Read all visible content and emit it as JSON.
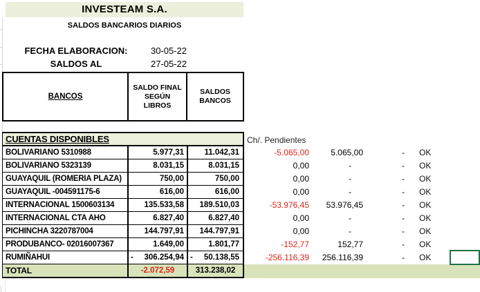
{
  "header": {
    "company": "INVESTEAM S.A.",
    "subtitle": "SALDOS BANCARIOS DIARIOS",
    "fecha_label": "FECHA ELABORACION:",
    "fecha_value": "30-05-22",
    "saldos_label": "SALDOS AL",
    "saldos_value": "27-05-22"
  },
  "table": {
    "col_bancos": "BANCOS",
    "col_libros": "SALDO FINAL\nSEGÚN\nLIBROS",
    "col_saldos": "SALDOS\nBANCOS",
    "section_label": "CUENTAS DISPONIBLES",
    "pendientes_label": "Ch/. Pendientes",
    "rows": [
      {
        "name": "BOLIVARIANO 5310988",
        "libros": "5.977,31",
        "bancos": "11.042,31",
        "dif": "-5.065,00",
        "pend": "5.065,00",
        "ajuste": "-",
        "status": "OK"
      },
      {
        "name": "BOLIVARIANO 5323139",
        "libros": "8.031,15",
        "bancos": "8.031,15",
        "dif": "0,00",
        "pend": "-",
        "ajuste": "-",
        "status": "OK"
      },
      {
        "name": "GUAYAQUIL (ROMERIA PLAZA)",
        "libros": "750,00",
        "bancos": "750,00",
        "dif": "0,00",
        "pend": "-",
        "ajuste": "-",
        "status": "OK"
      },
      {
        "name": "GUAYAQUIL -004591175-6",
        "libros": "616,00",
        "bancos": "616,00",
        "dif": "0,00",
        "pend": "-",
        "ajuste": "-",
        "status": "OK"
      },
      {
        "name": "INTERNACIONAL 1500603134",
        "libros": "135.533,58",
        "bancos": "189.510,03",
        "dif": "-53.976,45",
        "pend": "53.976,45",
        "ajuste": "-",
        "status": "OK"
      },
      {
        "name": "INTERNACIONAL CTA AHO",
        "libros": "6.827,40",
        "bancos": "6.827,40",
        "dif": "0,00",
        "pend": "-",
        "ajuste": "-",
        "status": "OK"
      },
      {
        "name": "PICHINCHA 3220787004",
        "libros": "144.797,91",
        "bancos": "144.797,91",
        "dif": "0,00",
        "pend": "-",
        "ajuste": "-",
        "status": "OK"
      },
      {
        "name": "PRODUBANCO- 02016007367",
        "libros": "1.649,00",
        "bancos": "1.801,77",
        "dif": "-152,77",
        "pend": "152,77",
        "ajuste": "-",
        "status": "OK"
      },
      {
        "name": "RUMIÑAHUI",
        "libros": "306.254,94",
        "libros_neg": true,
        "bancos": "50.138,55",
        "bancos_neg": true,
        "dif": "-256.116,39",
        "pend": "256.116,39",
        "ajuste": "-",
        "status": "OK"
      }
    ],
    "total": {
      "label": "TOTAL",
      "libros": "-2.072,59",
      "bancos": "313.238,02"
    }
  },
  "colors": {
    "band_light": "#ecefdb",
    "band_total": "#d8e3bb",
    "negative": "#e02415",
    "selection": "#1e7145"
  }
}
